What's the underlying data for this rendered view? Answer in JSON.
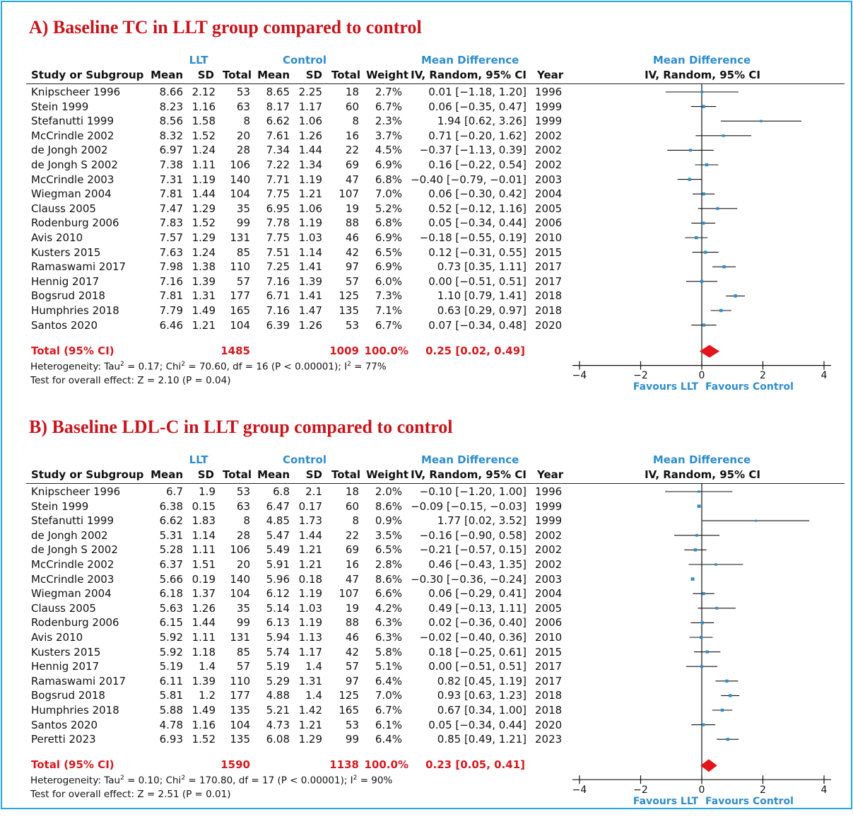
{
  "panels": [
    {
      "title": "A) Baseline TC in LLT group compared to control",
      "group_llt": "LLT",
      "group_control": "Control",
      "group_md": "Mean Difference",
      "plot_header_1": "Mean Difference",
      "plot_header_2": "IV, Random, 95% CI",
      "headers": [
        "Study or Subgroup",
        "Mean",
        "SD",
        "Total",
        "Mean",
        "SD",
        "Total",
        "Weight",
        "IV, Random, 95% CI",
        "Year"
      ],
      "rows": [
        {
          "study": "Knipscheer 1996",
          "m1": "8.66",
          "sd1": "2.12",
          "n1": "53",
          "m2": "8.65",
          "sd2": "2.25",
          "n2": "18",
          "w": "2.7%",
          "ci": "0.01 [−1.18, 1.20]",
          "year": "1996"
        },
        {
          "study": "Stein 1999",
          "m1": "8.23",
          "sd1": "1.16",
          "n1": "63",
          "m2": "8.17",
          "sd2": "1.17",
          "n2": "60",
          "w": "6.7%",
          "ci": "0.06 [−0.35, 0.47]",
          "year": "1999"
        },
        {
          "study": "Stefanutti 1999",
          "m1": "8.56",
          "sd1": "1.58",
          "n1": "8",
          "m2": "6.62",
          "sd2": "1.06",
          "n2": "8",
          "w": "2.3%",
          "ci": "1.94 [0.62, 3.26]",
          "year": "1999"
        },
        {
          "study": "McCrindle 2002",
          "m1": "8.32",
          "sd1": "1.52",
          "n1": "20",
          "m2": "7.61",
          "sd2": "1.26",
          "n2": "16",
          "w": "3.7%",
          "ci": "0.71 [−0.20, 1.62]",
          "year": "2002"
        },
        {
          "study": "de Jongh 2002",
          "m1": "6.97",
          "sd1": "1.24",
          "n1": "28",
          "m2": "7.34",
          "sd2": "1.44",
          "n2": "22",
          "w": "4.5%",
          "ci": "−0.37 [−1.13, 0.39]",
          "year": "2002"
        },
        {
          "study": "de Jongh S 2002",
          "m1": "7.38",
          "sd1": "1.11",
          "n1": "106",
          "m2": "7.22",
          "sd2": "1.34",
          "n2": "69",
          "w": "6.9%",
          "ci": "0.16 [−0.22, 0.54]",
          "year": "2002"
        },
        {
          "study": "McCrindle 2003",
          "m1": "7.31",
          "sd1": "1.19",
          "n1": "140",
          "m2": "7.71",
          "sd2": "1.19",
          "n2": "47",
          "w": "6.8%",
          "ci": "−0.40 [−0.79, −0.01]",
          "year": "2003"
        },
        {
          "study": "Wiegman 2004",
          "m1": "7.81",
          "sd1": "1.44",
          "n1": "104",
          "m2": "7.75",
          "sd2": "1.21",
          "n2": "107",
          "w": "7.0%",
          "ci": "0.06 [−0.30, 0.42]",
          "year": "2004"
        },
        {
          "study": "Clauss 2005",
          "m1": "7.47",
          "sd1": "1.29",
          "n1": "35",
          "m2": "6.95",
          "sd2": "1.06",
          "n2": "19",
          "w": "5.2%",
          "ci": "0.52 [−0.12, 1.16]",
          "year": "2005"
        },
        {
          "study": "Rodenburg 2006",
          "m1": "7.83",
          "sd1": "1.52",
          "n1": "99",
          "m2": "7.78",
          "sd2": "1.19",
          "n2": "88",
          "w": "6.8%",
          "ci": "0.05 [−0.34, 0.44]",
          "year": "2006"
        },
        {
          "study": "Avis 2010",
          "m1": "7.57",
          "sd1": "1.29",
          "n1": "131",
          "m2": "7.75",
          "sd2": "1.03",
          "n2": "46",
          "w": "6.9%",
          "ci": "−0.18 [−0.55, 0.19]",
          "year": "2010"
        },
        {
          "study": "Kusters 2015",
          "m1": "7.63",
          "sd1": "1.24",
          "n1": "85",
          "m2": "7.51",
          "sd2": "1.14",
          "n2": "42",
          "w": "6.5%",
          "ci": "0.12 [−0.31, 0.55]",
          "year": "2015"
        },
        {
          "study": "Ramaswami 2017",
          "m1": "7.98",
          "sd1": "1.38",
          "n1": "110",
          "m2": "7.25",
          "sd2": "1.41",
          "n2": "97",
          "w": "6.9%",
          "ci": "0.73 [0.35, 1.11]",
          "year": "2017"
        },
        {
          "study": "Hennig 2017",
          "m1": "7.16",
          "sd1": "1.39",
          "n1": "57",
          "m2": "7.16",
          "sd2": "1.39",
          "n2": "57",
          "w": "6.0%",
          "ci": "0.00 [−0.51, 0.51]",
          "year": "2017"
        },
        {
          "study": "Bogsrud 2018",
          "m1": "7.81",
          "sd1": "1.31",
          "n1": "177",
          "m2": "6.71",
          "sd2": "1.41",
          "n2": "125",
          "w": "7.3%",
          "ci": "1.10 [0.79, 1.41]",
          "year": "2018"
        },
        {
          "study": "Humphries 2018",
          "m1": "7.79",
          "sd1": "1.49",
          "n1": "165",
          "m2": "7.16",
          "sd2": "1.47",
          "n2": "135",
          "w": "7.1%",
          "ci": "0.63 [0.29, 0.97]",
          "year": "2018"
        },
        {
          "study": "Santos 2020",
          "m1": "6.46",
          "sd1": "1.21",
          "n1": "104",
          "m2": "6.39",
          "sd2": "1.26",
          "n2": "53",
          "w": "6.7%",
          "ci": "0.07 [−0.34, 0.48]",
          "year": "2020"
        }
      ],
      "total": {
        "label": "Total (95% CI)",
        "n1": "1485",
        "n2": "1009",
        "w": "100.0%",
        "ci": "0.25 [0.02, 0.49]"
      },
      "heterogeneity": {
        "a": "Heterogeneity: Tau",
        "b": " = 0.17; Chi",
        "c": " = 70.60, df = 16 (P < 0.00001); I",
        "d": " = 77%"
      },
      "overall_effect": "Test for overall effect: Z = 2.10 (P = 0.04)",
      "favours_left": "Favours LLT",
      "favours_right": "Favours Control"
    },
    {
      "title": "B) Baseline LDL-C in LLT group compared to control",
      "group_llt": "LLT",
      "group_control": "Control",
      "group_md": "Mean Difference",
      "plot_header_1": "Mean Difference",
      "plot_header_2": "IV, Random, 95% CI",
      "headers": [
        "Study or Subgroup",
        "Mean",
        "SD",
        "Total",
        "Mean",
        "SD",
        "Total",
        "Weight",
        "IV, Random, 95% CI",
        "Year"
      ],
      "rows": [
        {
          "study": "Knipscheer 1996",
          "m1": "6.7",
          "sd1": "1.9",
          "n1": "53",
          "m2": "6.8",
          "sd2": "2.1",
          "n2": "18",
          "w": "2.0%",
          "ci": "−0.10 [−1.20, 1.00]",
          "year": "1996"
        },
        {
          "study": "Stein 1999",
          "m1": "6.38",
          "sd1": "0.15",
          "n1": "63",
          "m2": "6.47",
          "sd2": "0.17",
          "n2": "60",
          "w": "8.6%",
          "ci": "−0.09 [−0.15, −0.03]",
          "year": "1999"
        },
        {
          "study": "Stefanutti 1999",
          "m1": "6.62",
          "sd1": "1.83",
          "n1": "8",
          "m2": "4.85",
          "sd2": "1.73",
          "n2": "8",
          "w": "0.9%",
          "ci": "1.77 [0.02, 3.52]",
          "year": "1999"
        },
        {
          "study": "de Jongh 2002",
          "m1": "5.31",
          "sd1": "1.14",
          "n1": "28",
          "m2": "5.47",
          "sd2": "1.44",
          "n2": "22",
          "w": "3.5%",
          "ci": "−0.16 [−0.90, 0.58]",
          "year": "2002"
        },
        {
          "study": "de Jongh S 2002",
          "m1": "5.28",
          "sd1": "1.11",
          "n1": "106",
          "m2": "5.49",
          "sd2": "1.21",
          "n2": "69",
          "w": "6.5%",
          "ci": "−0.21 [−0.57, 0.15]",
          "year": "2002"
        },
        {
          "study": "McCrindle 2002",
          "m1": "6.37",
          "sd1": "1.51",
          "n1": "20",
          "m2": "5.91",
          "sd2": "1.21",
          "n2": "16",
          "w": "2.8%",
          "ci": "0.46 [−0.43, 1.35]",
          "year": "2002"
        },
        {
          "study": "McCrindle 2003",
          "m1": "5.66",
          "sd1": "0.19",
          "n1": "140",
          "m2": "5.96",
          "sd2": "0.18",
          "n2": "47",
          "w": "8.6%",
          "ci": "−0.30 [−0.36, −0.24]",
          "year": "2003"
        },
        {
          "study": "Wiegman 2004",
          "m1": "6.18",
          "sd1": "1.37",
          "n1": "104",
          "m2": "6.12",
          "sd2": "1.19",
          "n2": "107",
          "w": "6.6%",
          "ci": "0.06 [−0.29, 0.41]",
          "year": "2004"
        },
        {
          "study": "Clauss 2005",
          "m1": "5.63",
          "sd1": "1.26",
          "n1": "35",
          "m2": "5.14",
          "sd2": "1.03",
          "n2": "19",
          "w": "4.2%",
          "ci": "0.49 [−0.13, 1.11]",
          "year": "2005"
        },
        {
          "study": "Rodenburg 2006",
          "m1": "6.15",
          "sd1": "1.44",
          "n1": "99",
          "m2": "6.13",
          "sd2": "1.19",
          "n2": "88",
          "w": "6.3%",
          "ci": "0.02 [−0.36, 0.40]",
          "year": "2006"
        },
        {
          "study": "Avis 2010",
          "m1": "5.92",
          "sd1": "1.11",
          "n1": "131",
          "m2": "5.94",
          "sd2": "1.13",
          "n2": "46",
          "w": "6.3%",
          "ci": "−0.02 [−0.40, 0.36]",
          "year": "2010"
        },
        {
          "study": "Kusters 2015",
          "m1": "5.92",
          "sd1": "1.18",
          "n1": "85",
          "m2": "5.74",
          "sd2": "1.17",
          "n2": "42",
          "w": "5.8%",
          "ci": "0.18 [−0.25, 0.61]",
          "year": "2015"
        },
        {
          "study": "Hennig 2017",
          "m1": "5.19",
          "sd1": "1.4",
          "n1": "57",
          "m2": "5.19",
          "sd2": "1.4",
          "n2": "57",
          "w": "5.1%",
          "ci": "0.00 [−0.51, 0.51]",
          "year": "2017"
        },
        {
          "study": "Ramaswami 2017",
          "m1": "6.11",
          "sd1": "1.39",
          "n1": "110",
          "m2": "5.29",
          "sd2": "1.31",
          "n2": "97",
          "w": "6.4%",
          "ci": "0.82 [0.45, 1.19]",
          "year": "2017"
        },
        {
          "study": "Bogsrud 2018",
          "m1": "5.81",
          "sd1": "1.2",
          "n1": "177",
          "m2": "4.88",
          "sd2": "1.4",
          "n2": "125",
          "w": "7.0%",
          "ci": "0.93 [0.63, 1.23]",
          "year": "2018"
        },
        {
          "study": "Humphries 2018",
          "m1": "5.88",
          "sd1": "1.49",
          "n1": "135",
          "m2": "5.21",
          "sd2": "1.42",
          "n2": "165",
          "w": "6.7%",
          "ci": "0.67 [0.34, 1.00]",
          "year": "2018"
        },
        {
          "study": "Santos 2020",
          "m1": "4.78",
          "sd1": "1.16",
          "n1": "104",
          "m2": "4.73",
          "sd2": "1.21",
          "n2": "53",
          "w": "6.1%",
          "ci": "0.05 [−0.34, 0.44]",
          "year": "2020"
        },
        {
          "study": "Peretti 2023",
          "m1": "6.93",
          "sd1": "1.52",
          "n1": "135",
          "m2": "6.08",
          "sd2": "1.29",
          "n2": "99",
          "w": "6.4%",
          "ci": "0.85 [0.49, 1.21]",
          "year": "2023"
        }
      ],
      "total": {
        "label": "Total (95% CI)",
        "n1": "1590",
        "n2": "1138",
        "w": "100.0%",
        "ci": "0.23 [0.05, 0.41]"
      },
      "heterogeneity": {
        "a": "Heterogeneity: Tau",
        "b": " = 0.10; Chi",
        "c": " = 170.80, df = 17 (P < 0.00001); I",
        "d": " = 90%"
      },
      "overall_effect": "Test for overall effect: Z = 2.51 (P = 0.01)",
      "favours_left": "Favours LLT",
      "favours_right": "Favours Control"
    }
  ],
  "chart_data": [
    {
      "type": "forest",
      "title": "A) Baseline TC in LLT group compared to control",
      "xlim": [
        -4,
        4
      ],
      "xticks": [
        "−4",
        "−2",
        "0",
        "2",
        "4"
      ],
      "xtick_values": [
        -4,
        -2,
        0,
        2,
        4
      ],
      "marker_color": "#2f8dcc",
      "total_color": "#e3141c",
      "studies": [
        {
          "name": "Knipscheer 1996",
          "md": 0.01,
          "lo": -1.18,
          "hi": 1.2,
          "weight": 2.7
        },
        {
          "name": "Stein 1999",
          "md": 0.06,
          "lo": -0.35,
          "hi": 0.47,
          "weight": 6.7
        },
        {
          "name": "Stefanutti 1999",
          "md": 1.94,
          "lo": 0.62,
          "hi": 3.26,
          "weight": 2.3
        },
        {
          "name": "McCrindle 2002",
          "md": 0.71,
          "lo": -0.2,
          "hi": 1.62,
          "weight": 3.7
        },
        {
          "name": "de Jongh 2002",
          "md": -0.37,
          "lo": -1.13,
          "hi": 0.39,
          "weight": 4.5
        },
        {
          "name": "de Jongh S 2002",
          "md": 0.16,
          "lo": -0.22,
          "hi": 0.54,
          "weight": 6.9
        },
        {
          "name": "McCrindle 2003",
          "md": -0.4,
          "lo": -0.79,
          "hi": -0.01,
          "weight": 6.8
        },
        {
          "name": "Wiegman 2004",
          "md": 0.06,
          "lo": -0.3,
          "hi": 0.42,
          "weight": 7.0
        },
        {
          "name": "Clauss 2005",
          "md": 0.52,
          "lo": -0.12,
          "hi": 1.16,
          "weight": 5.2
        },
        {
          "name": "Rodenburg 2006",
          "md": 0.05,
          "lo": -0.34,
          "hi": 0.44,
          "weight": 6.8
        },
        {
          "name": "Avis 2010",
          "md": -0.18,
          "lo": -0.55,
          "hi": 0.19,
          "weight": 6.9
        },
        {
          "name": "Kusters 2015",
          "md": 0.12,
          "lo": -0.31,
          "hi": 0.55,
          "weight": 6.5
        },
        {
          "name": "Ramaswami 2017",
          "md": 0.73,
          "lo": 0.35,
          "hi": 1.11,
          "weight": 6.9
        },
        {
          "name": "Hennig 2017",
          "md": 0.0,
          "lo": -0.51,
          "hi": 0.51,
          "weight": 6.0
        },
        {
          "name": "Bogsrud 2018",
          "md": 1.1,
          "lo": 0.79,
          "hi": 1.41,
          "weight": 7.3
        },
        {
          "name": "Humphries 2018",
          "md": 0.63,
          "lo": 0.29,
          "hi": 0.97,
          "weight": 7.1
        },
        {
          "name": "Santos 2020",
          "md": 0.07,
          "lo": -0.34,
          "hi": 0.48,
          "weight": 6.7
        }
      ],
      "total": {
        "md": 0.25,
        "lo": 0.02,
        "hi": 0.49
      }
    },
    {
      "type": "forest",
      "title": "B) Baseline LDL-C in LLT group compared to control",
      "xlim": [
        -4,
        4
      ],
      "xticks": [
        "−4",
        "−2",
        "0",
        "2",
        "4"
      ],
      "xtick_values": [
        -4,
        -2,
        0,
        2,
        4
      ],
      "marker_color": "#2f8dcc",
      "total_color": "#e3141c",
      "studies": [
        {
          "name": "Knipscheer 1996",
          "md": -0.1,
          "lo": -1.2,
          "hi": 1.0,
          "weight": 2.0
        },
        {
          "name": "Stein 1999",
          "md": -0.09,
          "lo": -0.15,
          "hi": -0.03,
          "weight": 8.6
        },
        {
          "name": "Stefanutti 1999",
          "md": 1.77,
          "lo": 0.02,
          "hi": 3.52,
          "weight": 0.9
        },
        {
          "name": "de Jongh 2002",
          "md": -0.16,
          "lo": -0.9,
          "hi": 0.58,
          "weight": 3.5
        },
        {
          "name": "de Jongh S 2002",
          "md": -0.21,
          "lo": -0.57,
          "hi": 0.15,
          "weight": 6.5
        },
        {
          "name": "McCrindle 2002",
          "md": 0.46,
          "lo": -0.43,
          "hi": 1.35,
          "weight": 2.8
        },
        {
          "name": "McCrindle 2003",
          "md": -0.3,
          "lo": -0.36,
          "hi": -0.24,
          "weight": 8.6
        },
        {
          "name": "Wiegman 2004",
          "md": 0.06,
          "lo": -0.29,
          "hi": 0.41,
          "weight": 6.6
        },
        {
          "name": "Clauss 2005",
          "md": 0.49,
          "lo": -0.13,
          "hi": 1.11,
          "weight": 4.2
        },
        {
          "name": "Rodenburg 2006",
          "md": 0.02,
          "lo": -0.36,
          "hi": 0.4,
          "weight": 6.3
        },
        {
          "name": "Avis 2010",
          "md": -0.02,
          "lo": -0.4,
          "hi": 0.36,
          "weight": 6.3
        },
        {
          "name": "Kusters 2015",
          "md": 0.18,
          "lo": -0.25,
          "hi": 0.61,
          "weight": 5.8
        },
        {
          "name": "Hennig 2017",
          "md": 0.0,
          "lo": -0.51,
          "hi": 0.51,
          "weight": 5.1
        },
        {
          "name": "Ramaswami 2017",
          "md": 0.82,
          "lo": 0.45,
          "hi": 1.19,
          "weight": 6.4
        },
        {
          "name": "Bogsrud 2018",
          "md": 0.93,
          "lo": 0.63,
          "hi": 1.23,
          "weight": 7.0
        },
        {
          "name": "Humphries 2018",
          "md": 0.67,
          "lo": 0.34,
          "hi": 1.0,
          "weight": 6.7
        },
        {
          "name": "Santos 2020",
          "md": 0.05,
          "lo": -0.34,
          "hi": 0.44,
          "weight": 6.1
        },
        {
          "name": "Peretti 2023",
          "md": 0.85,
          "lo": 0.49,
          "hi": 1.21,
          "weight": 6.4
        }
      ],
      "total": {
        "md": 0.23,
        "lo": 0.05,
        "hi": 0.41
      }
    }
  ]
}
